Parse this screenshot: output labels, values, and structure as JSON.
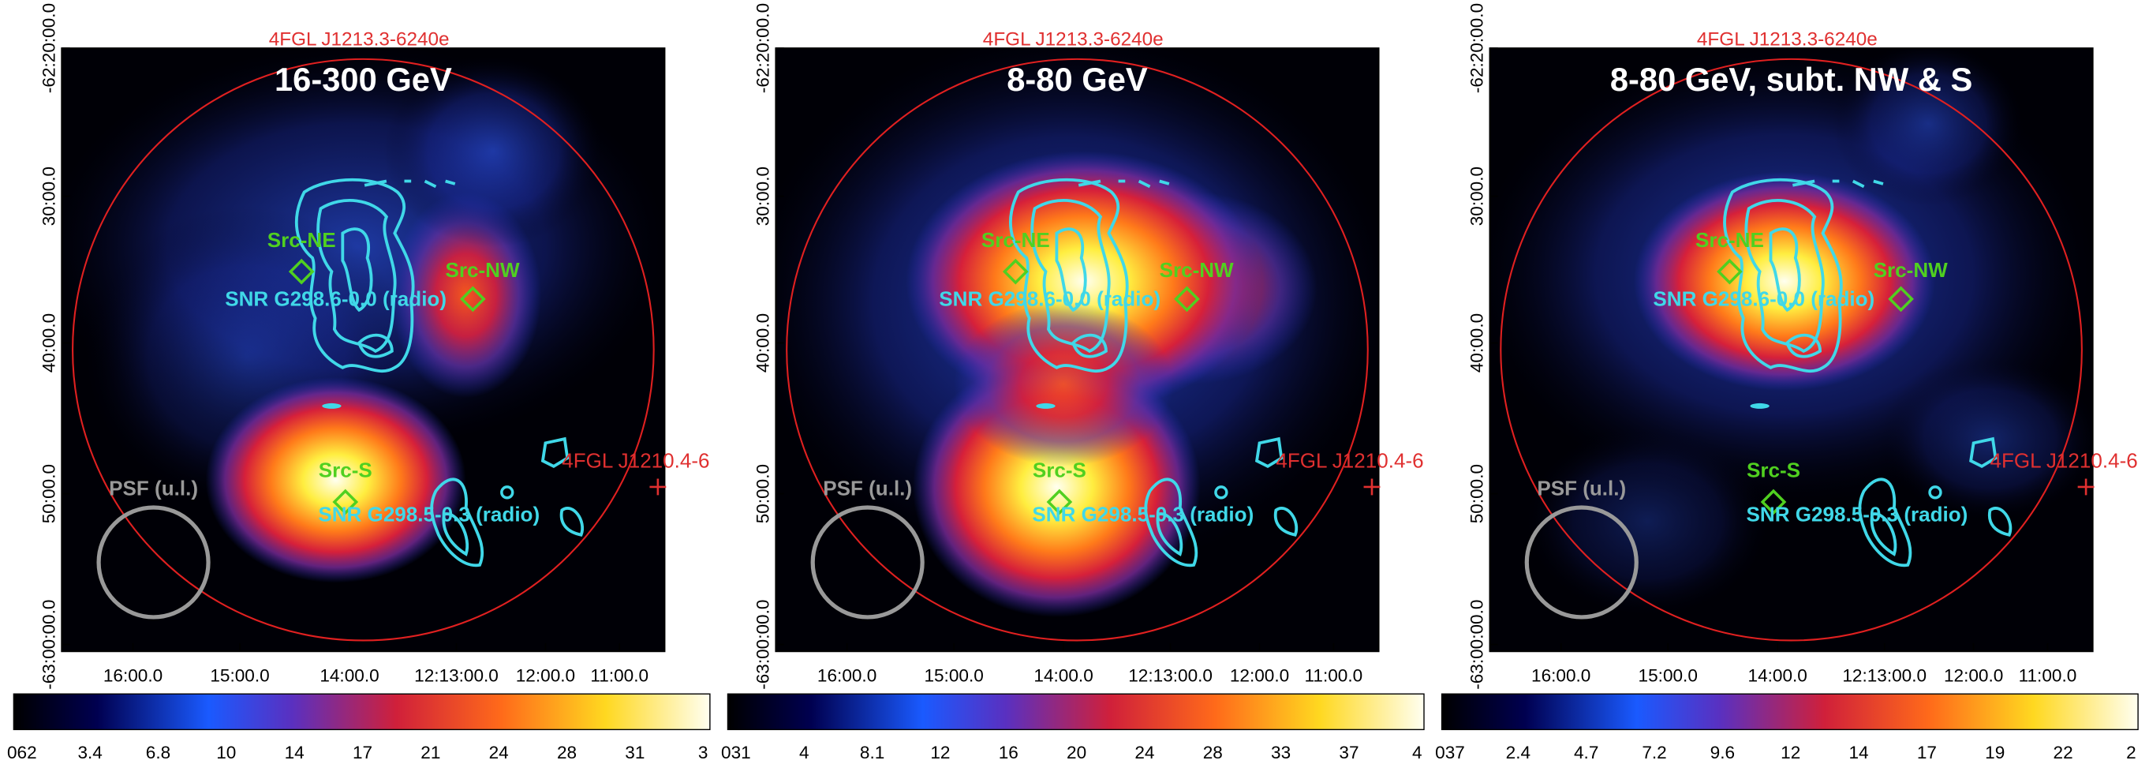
{
  "axes": {
    "y_ticks": [
      "-62:20:00.0",
      "30:00.0",
      "40:00.0",
      "50:00.0",
      "-63:00:00.0"
    ],
    "x_ticks": [
      "16:00.0",
      "15:00.0",
      "14:00.0",
      "12:13:00.0",
      "12:00.0",
      "11:00.0"
    ]
  },
  "panels": [
    {
      "title": "16-300 GeV",
      "labels": {
        "fgl_main": "4FGL J1213.3-6240e",
        "fgl_west": "4FGL J1210.4-6",
        "src_ne": "Src-NE",
        "src_nw": "Src-NW",
        "snr_north": "SNR G298.6-0.0 (radio)",
        "src_s": "Src-S",
        "snr_south": "SNR G298.5-0.3 (radio)",
        "psf": "PSF (u.l.)"
      },
      "colorbar": [
        "062",
        "3.4",
        "6.8",
        "10",
        "14",
        "17",
        "21",
        "24",
        "28",
        "31",
        "3"
      ]
    },
    {
      "title": "8-80 GeV",
      "labels": {
        "fgl_main": "4FGL J1213.3-6240e",
        "fgl_west": "4FGL J1210.4-6",
        "src_ne": "Src-NE",
        "src_nw": "Src-NW",
        "snr_north": "SNR G298.6-0.0 (radio)",
        "src_s": "Src-S",
        "snr_south": "SNR G298.5-0.3 (radio)",
        "psf": "PSF (u.l.)"
      },
      "colorbar": [
        "031",
        "4",
        "8.1",
        "12",
        "16",
        "20",
        "24",
        "28",
        "33",
        "37",
        "4"
      ]
    },
    {
      "title": "8-80 GeV, subt. NW & S",
      "labels": {
        "fgl_main": "4FGL J1213.3-6240e",
        "fgl_west": "4FGL J1210.4-6",
        "src_ne": "Src-NE",
        "src_nw": "Src-NW",
        "snr_north": "SNR G298.6-0.0 (radio)",
        "src_s": "Src-S",
        "snr_south": "SNR G298.5-0.3 (radio)",
        "psf": "PSF (u.l.)"
      },
      "colorbar": [
        "037",
        "2.4",
        "4.7",
        "7.2",
        "9.6",
        "12",
        "14",
        "17",
        "19",
        "22",
        "2"
      ]
    }
  ]
}
